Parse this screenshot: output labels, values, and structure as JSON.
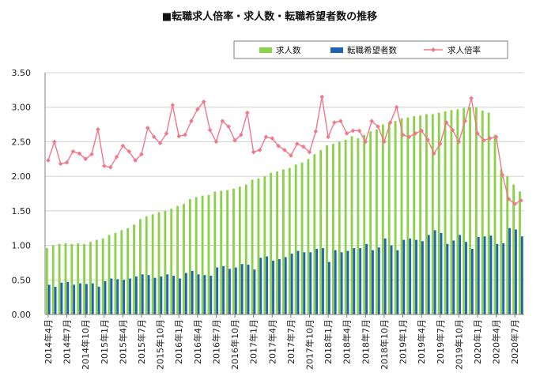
{
  "chart_data": {
    "type": "bar",
    "title": "■転職求人倍率・求人数・転職希望者数の推移",
    "ylim": [
      0,
      3.5
    ],
    "yticks": [
      "0.00",
      "0.50",
      "1.00",
      "1.50",
      "2.00",
      "2.50",
      "3.00",
      "3.50"
    ],
    "grid": "horizontal",
    "legend_position": "top-right",
    "x_tick_labels": [
      "2014年4月",
      "2014年7月",
      "2014年10月",
      "2015年1月",
      "2015年4月",
      "2015年7月",
      "2015年10月",
      "2016年1月",
      "2016年4月",
      "2016年7月",
      "2016年10月",
      "2017年1月",
      "2017年4月",
      "2017年7月",
      "2017年10月",
      "2018年1月",
      "2018年4月",
      "2018年7月",
      "2018年10月",
      "2019年1月",
      "2019年4月",
      "2019年7月",
      "2019年10月",
      "2020年1月",
      "2020年4月",
      "2020年7月"
    ],
    "categories": [
      "2014年4月",
      "2014年5月",
      "2014年6月",
      "2014年7月",
      "2014年8月",
      "2014年9月",
      "2014年10月",
      "2014年11月",
      "2014年12月",
      "2015年1月",
      "2015年2月",
      "2015年3月",
      "2015年4月",
      "2015年5月",
      "2015年6月",
      "2015年7月",
      "2015年8月",
      "2015年9月",
      "2015年10月",
      "2015年11月",
      "2015年12月",
      "2016年1月",
      "2016年2月",
      "2016年3月",
      "2016年4月",
      "2016年5月",
      "2016年6月",
      "2016年7月",
      "2016年8月",
      "2016年9月",
      "2016年10月",
      "2016年11月",
      "2016年12月",
      "2017年1月",
      "2017年2月",
      "2017年3月",
      "2017年4月",
      "2017年5月",
      "2017年6月",
      "2017年7月",
      "2017年8月",
      "2017年9月",
      "2017年10月",
      "2017年11月",
      "2017年12月",
      "2018年1月",
      "2018年2月",
      "2018年3月",
      "2018年4月",
      "2018年5月",
      "2018年6月",
      "2018年7月",
      "2018年8月",
      "2018年9月",
      "2018年10月",
      "2018年11月",
      "2018年12月",
      "2019年1月",
      "2019年2月",
      "2019年3月",
      "2019年4月",
      "2019年5月",
      "2019年6月",
      "2019年7月",
      "2019年8月",
      "2019年9月",
      "2019年10月",
      "2019年11月",
      "2019年12月",
      "2020年1月",
      "2020年2月",
      "2020年3月",
      "2020年4月",
      "2020年5月",
      "2020年6月",
      "2020年7月",
      "2020年8月"
    ],
    "series": [
      {
        "name": "求人数",
        "kind": "bar",
        "color": "#8cd14a",
        "values": [
          0.96,
          1.0,
          1.02,
          1.03,
          1.02,
          1.03,
          1.02,
          1.05,
          1.08,
          1.1,
          1.15,
          1.18,
          1.22,
          1.25,
          1.3,
          1.38,
          1.42,
          1.45,
          1.48,
          1.5,
          1.53,
          1.57,
          1.6,
          1.67,
          1.7,
          1.72,
          1.73,
          1.78,
          1.79,
          1.8,
          1.82,
          1.85,
          1.88,
          1.95,
          1.97,
          2.0,
          2.05,
          2.07,
          2.1,
          2.12,
          2.17,
          2.2,
          2.25,
          2.32,
          2.38,
          2.45,
          2.47,
          2.5,
          2.53,
          2.58,
          2.55,
          2.6,
          2.65,
          2.68,
          2.75,
          2.78,
          2.8,
          2.84,
          2.85,
          2.87,
          2.88,
          2.9,
          2.9,
          2.92,
          2.94,
          2.96,
          2.97,
          2.99,
          3.0,
          3.0,
          2.95,
          2.92,
          2.6,
          2.1,
          2.0,
          1.88,
          1.78
        ]
      },
      {
        "name": "転職希望者数",
        "kind": "bar",
        "color": "#1f63b3",
        "values": [
          0.43,
          0.4,
          0.46,
          0.47,
          0.43,
          0.45,
          0.44,
          0.45,
          0.4,
          0.48,
          0.52,
          0.51,
          0.5,
          0.52,
          0.55,
          0.58,
          0.57,
          0.53,
          0.55,
          0.58,
          0.56,
          0.52,
          0.6,
          0.63,
          0.58,
          0.57,
          0.56,
          0.68,
          0.7,
          0.66,
          0.68,
          0.73,
          0.72,
          0.65,
          0.82,
          0.84,
          0.78,
          0.8,
          0.83,
          0.88,
          0.92,
          0.9,
          0.9,
          0.95,
          0.96,
          0.76,
          0.93,
          0.9,
          0.92,
          0.96,
          0.96,
          1.02,
          0.93,
          0.97,
          1.1,
          1.0,
          0.93,
          1.08,
          1.1,
          1.08,
          1.06,
          1.15,
          1.22,
          1.18,
          1.02,
          1.07,
          1.15,
          1.05,
          0.95,
          1.12,
          1.13,
          1.14,
          1.02,
          1.03,
          1.25,
          1.23,
          1.13
        ]
      },
      {
        "name": "求人倍率",
        "kind": "line",
        "color": "#f0788a",
        "values": [
          2.23,
          2.5,
          2.18,
          2.2,
          2.36,
          2.33,
          2.25,
          2.32,
          2.68,
          2.15,
          2.13,
          2.28,
          2.44,
          2.36,
          2.23,
          2.32,
          2.7,
          2.57,
          2.48,
          2.62,
          3.03,
          2.58,
          2.6,
          2.8,
          2.97,
          3.08,
          2.67,
          2.5,
          2.8,
          2.72,
          2.52,
          2.6,
          2.92,
          2.35,
          2.38,
          2.57,
          2.55,
          2.44,
          2.38,
          2.3,
          2.47,
          2.43,
          2.35,
          2.65,
          3.15,
          2.57,
          2.78,
          2.8,
          2.62,
          2.66,
          2.66,
          2.5,
          2.8,
          2.72,
          2.5,
          2.78,
          3.0,
          2.6,
          2.57,
          2.62,
          2.66,
          2.53,
          2.33,
          2.47,
          2.78,
          2.67,
          2.5,
          2.8,
          3.13,
          2.62,
          2.52,
          2.55,
          2.57,
          2.02,
          1.67,
          1.6,
          1.65
        ]
      }
    ]
  }
}
